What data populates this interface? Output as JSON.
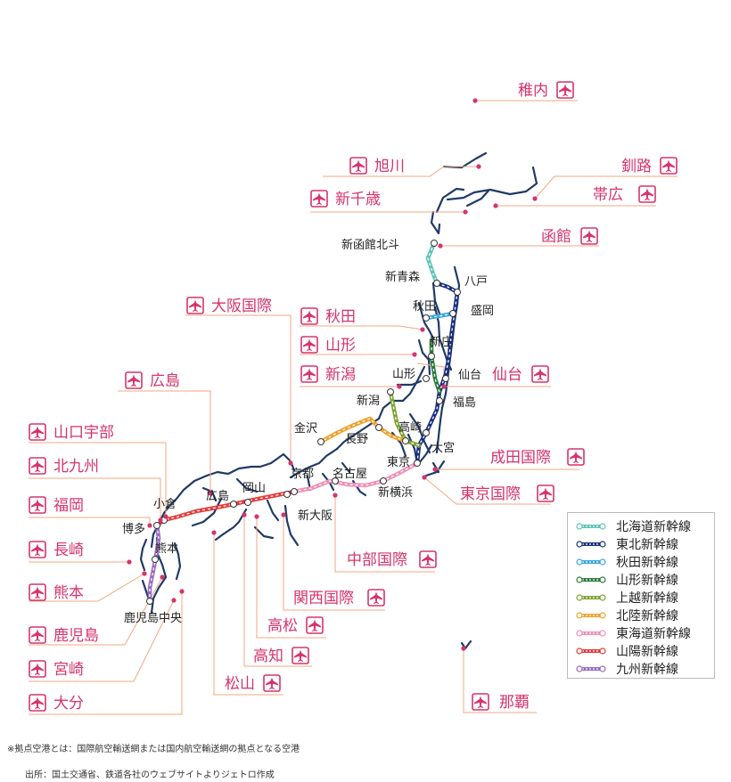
{
  "colors": {
    "coast": "#1f3a66",
    "airport": "#d6336c",
    "leader": "#f0a880",
    "hokkaido": "#5ec3b4",
    "tohoku": "#1a2f80",
    "akita": "#3aa7dd",
    "yamagata": "#2c7a3a",
    "joetsu": "#7fa332",
    "hokuriku": "#f0a02a",
    "tokaido": "#ef8fb8",
    "sanyo": "#e53a3a",
    "kyushu": "#9a6ac2"
  },
  "legend": [
    {
      "label": "北海道新幹線",
      "color": "#5ec3b4",
      "icon": "line-circle"
    },
    {
      "label": "東北新幹線",
      "color": "#1a2f80",
      "icon": "line-circle"
    },
    {
      "label": "秋田新幹線",
      "color": "#3aa7dd",
      "icon": "line-circle"
    },
    {
      "label": "山形新幹線",
      "color": "#2c7a3a",
      "icon": "line-circle"
    },
    {
      "label": "上越新幹線",
      "color": "#7fa332",
      "icon": "line-circle"
    },
    {
      "label": "北陸新幹線",
      "color": "#f0a02a",
      "icon": "line-circle"
    },
    {
      "label": "東海道新幹線",
      "color": "#ef8fb8",
      "icon": "line-circle"
    },
    {
      "label": "山陽新幹線",
      "color": "#e53a3a",
      "icon": "line-circle"
    },
    {
      "label": "九州新幹線",
      "color": "#9a6ac2",
      "icon": "line-circle"
    }
  ],
  "airports": {
    "wakkanai": "稚内",
    "asahikawa": "旭川",
    "kushiro": "釧路",
    "shinchitose": "新千歳",
    "obihiro": "帯広",
    "hakodate": "函館",
    "osaka": "大阪国際",
    "akita": "秋田",
    "yamagata": "山形",
    "niigata": "新潟",
    "sendai": "仙台",
    "hiroshima": "広島",
    "yamaguchiube": "山口宇部",
    "kitakyushu": "北九州",
    "fukuoka": "福岡",
    "narita": "成田国際",
    "tokyo": "東京国際",
    "nagasaki": "長崎",
    "kumamoto": "熊本",
    "chubu": "中部国際",
    "kansai": "関西国際",
    "kagoshima": "鹿児島",
    "takamatsu": "高松",
    "miyazaki": "宮崎",
    "kochi": "高知",
    "oita": "大分",
    "matsuyama": "松山",
    "naha": "那覇"
  },
  "stations": {
    "shinhakodate": "新函館北斗",
    "shinaomori": "新青森",
    "hachinohe": "八戸",
    "akita": "秋田",
    "morioka": "盛岡",
    "shinjo": "新庄",
    "yamagata": "山形",
    "sendai": "仙台",
    "fukushima": "福島",
    "niigata": "新潟",
    "kanazawa": "金沢",
    "takasaki": "高崎",
    "nagano": "長野",
    "omiya": "大宮",
    "tokyo": "東京",
    "kyoto": "京都",
    "nagoya": "名古屋",
    "shinyokohama": "新横浜",
    "okayama": "岡山",
    "hiroshima": "広島",
    "shinosaka": "新大阪",
    "kokura": "小倉",
    "hakata": "博多",
    "kumamoto": "熊本",
    "kagoshimachuo": "鹿児島中央"
  },
  "notes": {
    "definition": "※拠点空港とは：国際航空輸送網または国内航空輸送網の拠点となる空港",
    "source": "出所：国土交通省、鉄道各社のウェブサイトよりジェトロ作成"
  }
}
